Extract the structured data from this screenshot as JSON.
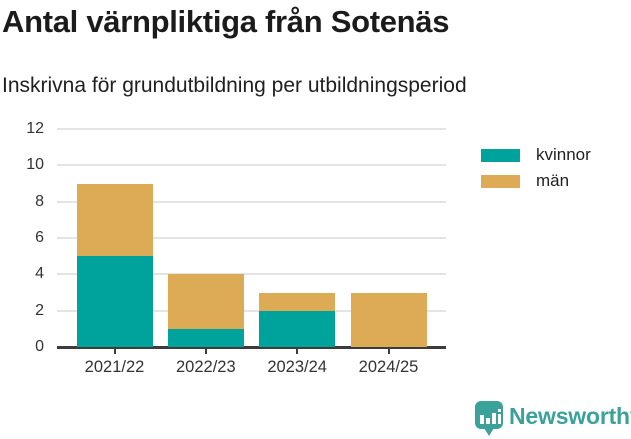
{
  "header": {
    "title": "Antal värnpliktiga från Sotenäs",
    "subtitle": "Inskrivna för grundutbildning per utbildningsperiod"
  },
  "chart_data": {
    "type": "bar",
    "stacked": true,
    "title": "Antal värnpliktiga från Sotenäs",
    "subtitle": "Inskrivna för grundutbildning per utbildningsperiod",
    "categories": [
      "2021/22",
      "2022/23",
      "2023/24",
      "2024/25"
    ],
    "series": [
      {
        "name": "kvinnor",
        "color": "#00a39b",
        "values": [
          5,
          1,
          2,
          0
        ]
      },
      {
        "name": "män",
        "color": "#ddab55",
        "values": [
          4,
          3,
          1,
          3
        ]
      }
    ],
    "xlabel": "",
    "ylabel": "",
    "ylim": [
      0,
      12
    ],
    "yticks": [
      0,
      2,
      4,
      6,
      8,
      10,
      12
    ],
    "grid": true,
    "legend_position": "right"
  },
  "legend": {
    "items": [
      {
        "label": "kvinnor",
        "color": "#00a39b"
      },
      {
        "label": "män",
        "color": "#ddab55"
      }
    ]
  },
  "footer": {
    "brand": "Newsworthy",
    "icon": "bar-chart-pin-icon",
    "brand_color": "#3aa29a"
  },
  "colors": {
    "kvinnor": "#00a39b",
    "man": "#ddab55",
    "gridline": "#e4e4e4",
    "axis": "#3c3c3c",
    "text": "#1b1b1b"
  }
}
